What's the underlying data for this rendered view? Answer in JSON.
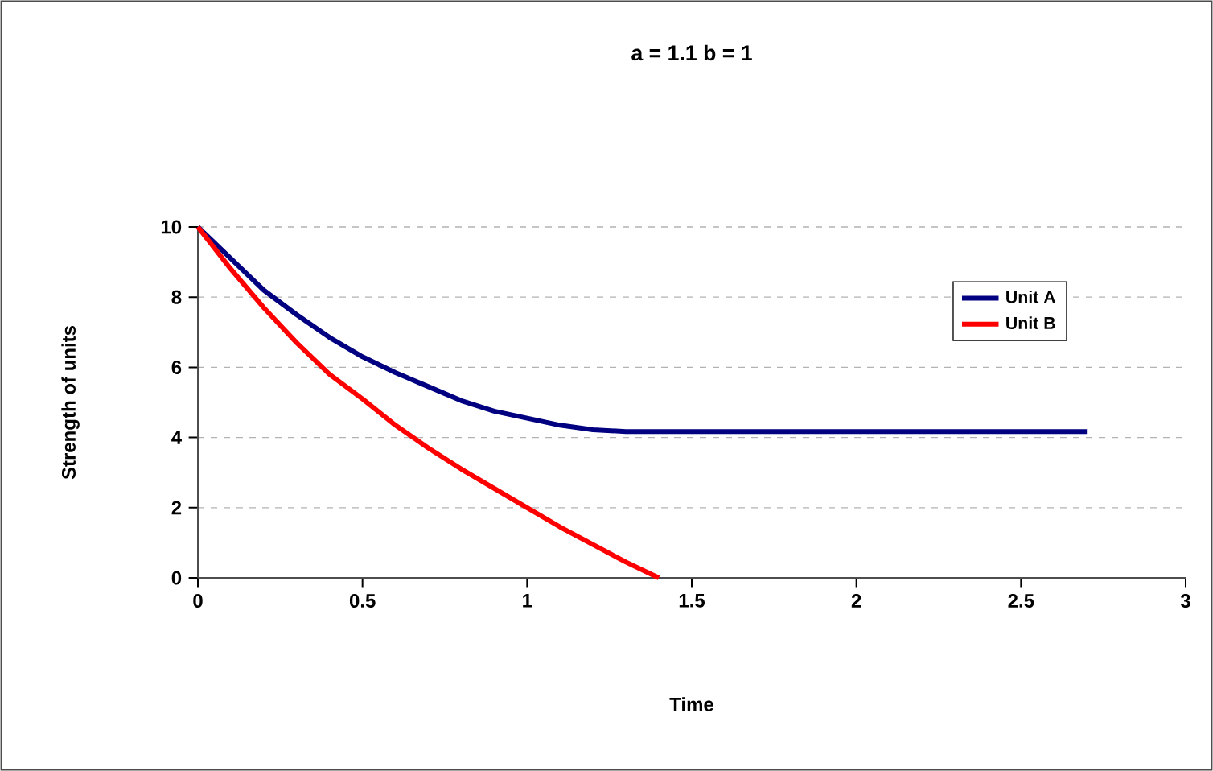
{
  "chart_data": {
    "type": "line",
    "title": "a = 1.1 b = 1",
    "xlabel": "Time",
    "ylabel": "Strength of units",
    "xlim": [
      0,
      3
    ],
    "xticks": [
      0,
      0.5,
      1,
      1.5,
      2,
      2.5,
      3
    ],
    "ylim": [
      0,
      10
    ],
    "yticks": [
      0,
      2,
      4,
      6,
      8,
      10
    ],
    "grid": "y",
    "legend": "right",
    "marker": "none",
    "line_style": "solid",
    "series": [
      {
        "name": "Unit A",
        "color": "#000080",
        "x": [
          0,
          0.1,
          0.2,
          0.3,
          0.4,
          0.5,
          0.6,
          0.7,
          0.8,
          0.9,
          1.0,
          1.1,
          1.2,
          1.3,
          2.7
        ],
        "values": [
          10,
          9.1,
          8.2,
          7.5,
          6.85,
          6.3,
          5.85,
          5.45,
          5.05,
          4.75,
          4.55,
          4.35,
          4.22,
          4.17,
          4.17
        ]
      },
      {
        "name": "Unit B",
        "color": "#ff0000",
        "x": [
          0,
          0.1,
          0.2,
          0.3,
          0.4,
          0.5,
          0.6,
          0.7,
          0.8,
          0.9,
          1.0,
          1.1,
          1.2,
          1.3,
          1.4
        ],
        "values": [
          10,
          8.8,
          7.7,
          6.7,
          5.8,
          5.1,
          4.35,
          3.7,
          3.1,
          2.55,
          2.0,
          1.45,
          0.95,
          0.45,
          0
        ]
      }
    ]
  }
}
